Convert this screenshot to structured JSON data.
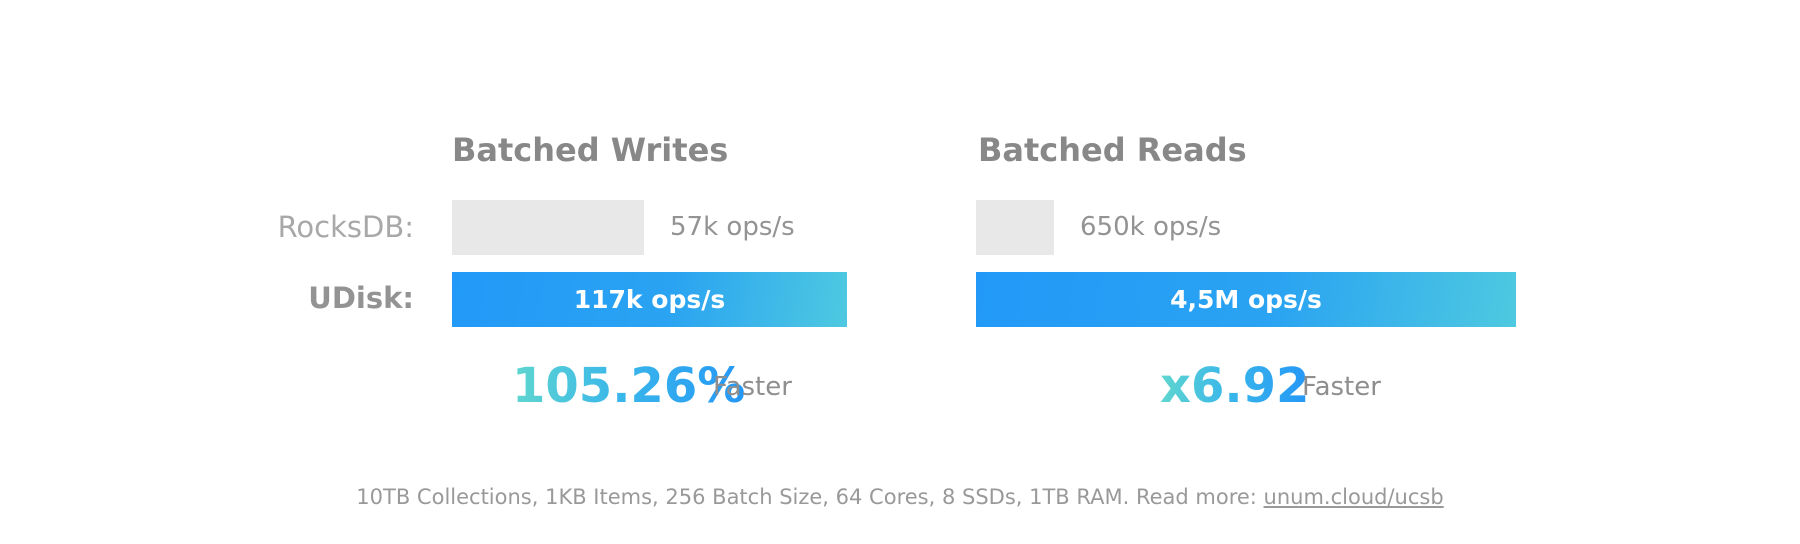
{
  "chart_data": {
    "type": "bar",
    "orientation": "horizontal",
    "series": [
      {
        "name": "RocksDB:",
        "values": [
          57000,
          650000
        ]
      },
      {
        "name": "UDisk:",
        "values": [
          117000,
          4500000
        ]
      }
    ],
    "colors": {
      "rocksdb": "#e8e8e8",
      "udisk_start": "#2299f8",
      "udisk_end": "#4ec9e0"
    },
    "panels": [
      {
        "title": "Batched Writes",
        "rocksdb_label": "57k ops/s",
        "udisk_label": "117k ops/s",
        "speedup": "105.26%",
        "speedup_suffix": "Faster",
        "rocksdb_fraction": 0.487
      },
      {
        "title": "Batched Reads",
        "rocksdb_label": "650k ops/s",
        "udisk_label": "4,5M ops/s",
        "speedup": "x6.92",
        "speedup_suffix": "Faster",
        "rocksdb_fraction": 0.144
      }
    ]
  },
  "footnote": {
    "text": "10TB Collections, 1KB Items, 256 Batch Size, 64 Cores, 8 SSDs, 1TB RAM. Read more: ",
    "link_text": "unum.cloud/ucsb"
  }
}
